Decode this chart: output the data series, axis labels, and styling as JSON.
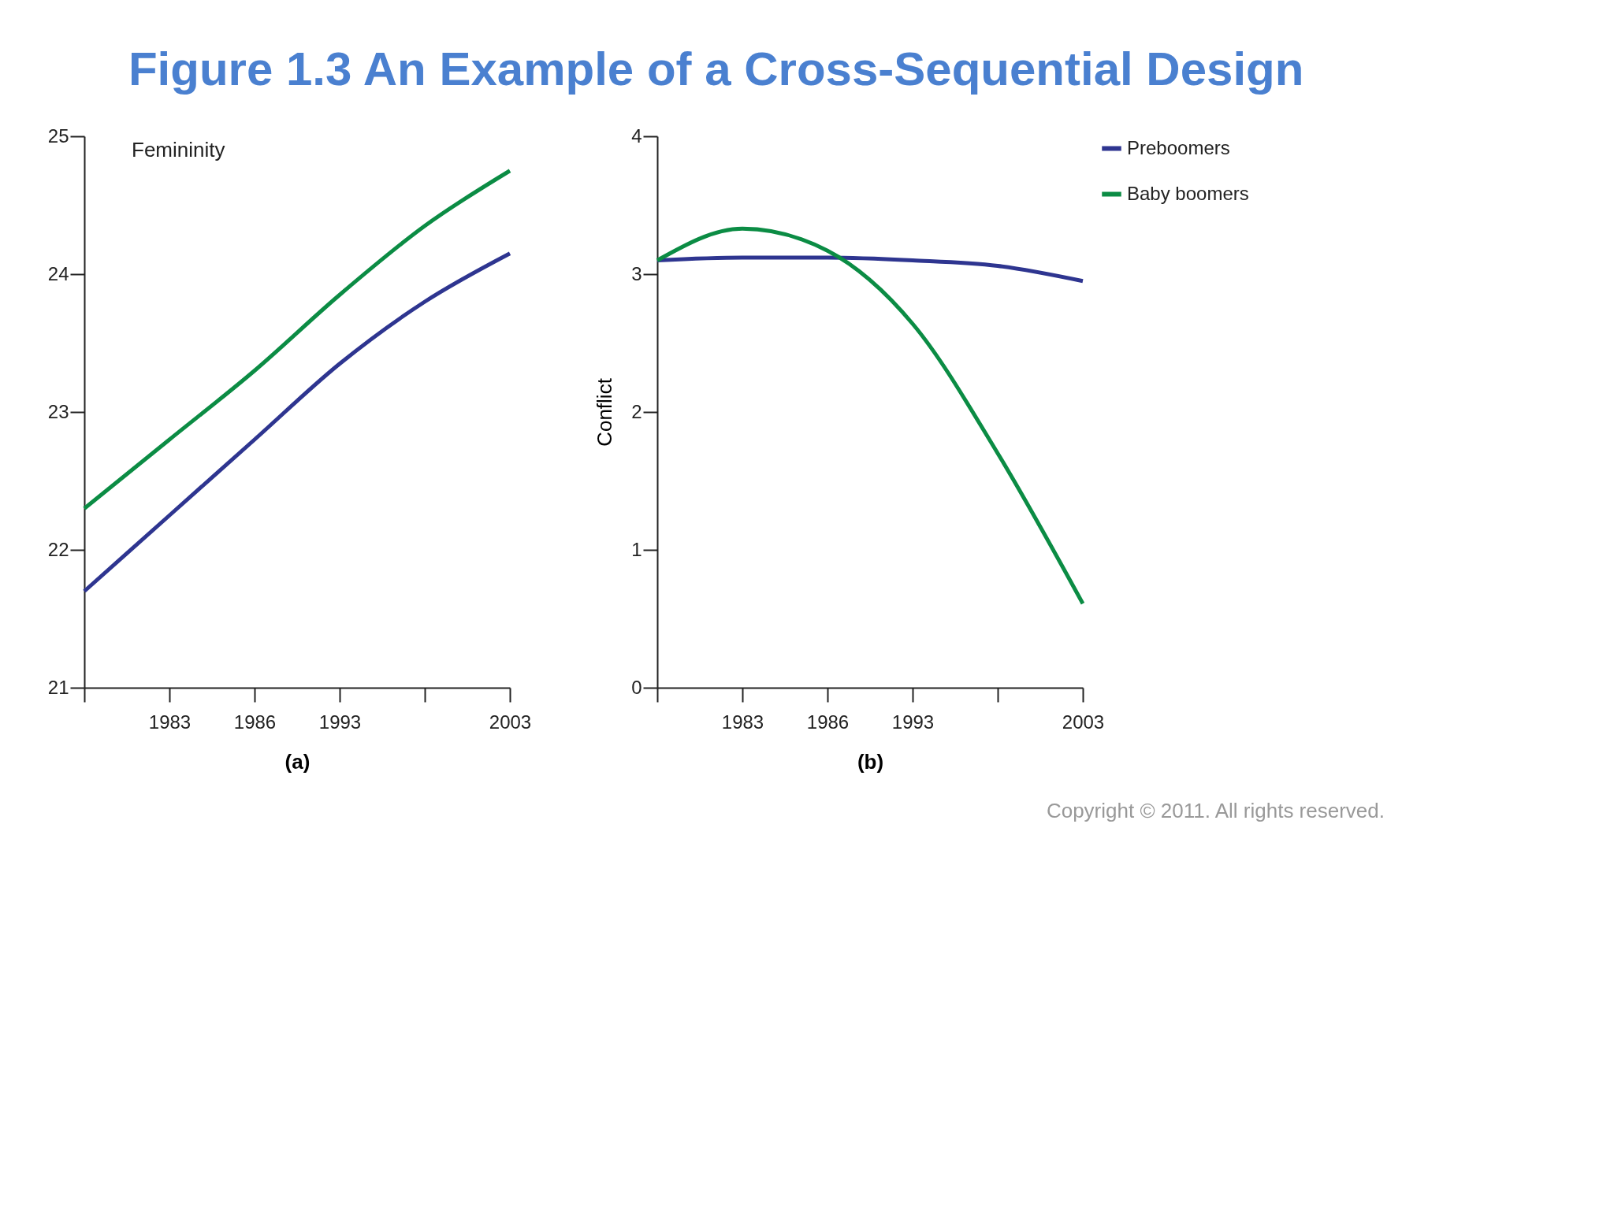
{
  "chart_data": [
    {
      "type": "line",
      "title": "Figure 1.3 An Example of a Cross-Sequential Design",
      "xlabel": "(a)",
      "annotations": [
        "Femininity"
      ],
      "categories": [
        null,
        "1983",
        "1986",
        "1993",
        null,
        "2003"
      ],
      "ylim": [
        21,
        25
      ],
      "yticks": [
        21,
        22,
        23,
        24,
        25
      ],
      "grid": false,
      "legend": false,
      "marker": "none",
      "line_style": "solid",
      "series": [
        {
          "color": "#2e3590",
          "values": [
            21.7,
            22.25,
            22.8,
            23.35,
            23.8,
            24.15
          ]
        },
        {
          "color": "#0b8c44",
          "values": [
            22.3,
            22.8,
            23.3,
            23.85,
            24.35,
            24.75
          ]
        }
      ]
    },
    {
      "type": "line",
      "xlabel": "(b)",
      "ylabel": "Conflict",
      "annotations": [
        "Copyright © 2011. All rights reserved."
      ],
      "categories": [
        null,
        "1983",
        "1986",
        "1993",
        null,
        "2003"
      ],
      "ylim": [
        0,
        4
      ],
      "yticks": [
        0,
        1,
        2,
        3,
        4
      ],
      "grid": false,
      "legend": "right",
      "marker": "none",
      "line_style": "solid",
      "series": [
        {
          "name": "Preboomers",
          "color": "#2e3590",
          "values": [
            3.1,
            3.12,
            3.12,
            3.1,
            3.06,
            2.95
          ]
        },
        {
          "name": "Baby boomers",
          "color": "#0b8c44",
          "values": [
            3.1,
            3.33,
            3.17,
            2.64,
            1.7,
            0.61
          ]
        }
      ]
    }
  ]
}
